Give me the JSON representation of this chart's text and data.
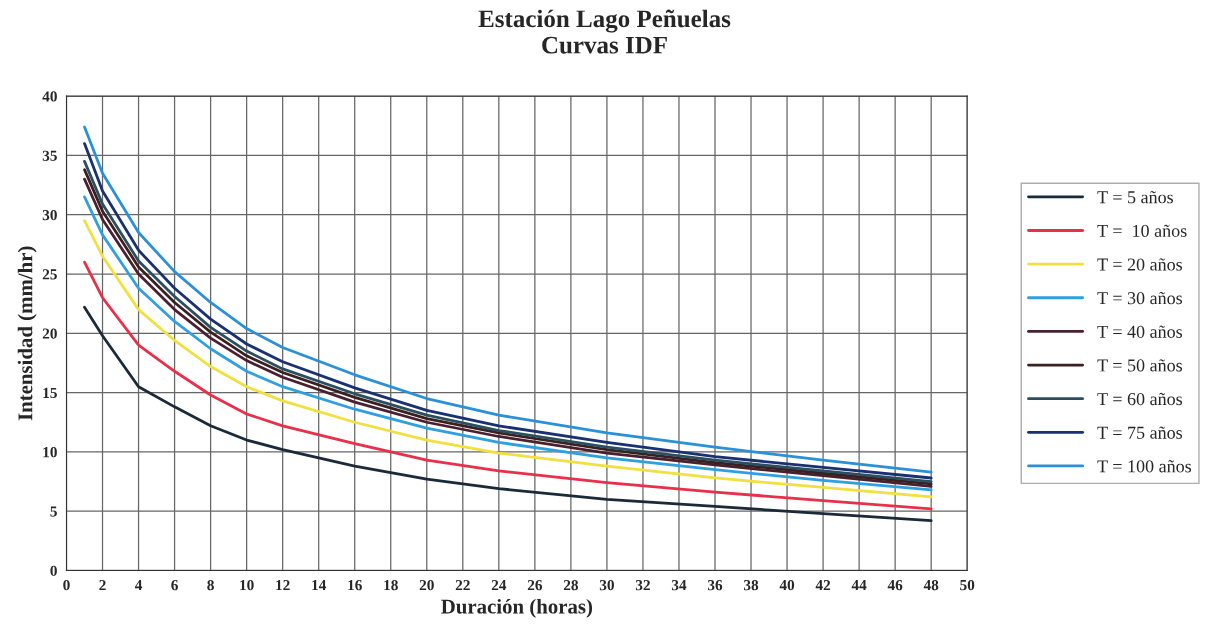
{
  "chart_data": {
    "type": "line",
    "title": "Estación Lago Peñuelas\nCurvas IDF",
    "xlabel": "Duración (horas)",
    "ylabel": "Intensidad (mm/hr)",
    "x": [
      1,
      2,
      4,
      6,
      8,
      10,
      12,
      16,
      20,
      24,
      30,
      36,
      42,
      48
    ],
    "series": [
      {
        "name": "T = 5 años",
        "color": "#1a2a3a",
        "values": [
          22.2,
          19.8,
          15.5,
          13.8,
          12.2,
          11.0,
          10.2,
          8.8,
          7.7,
          6.9,
          6.0,
          5.4,
          4.8,
          4.2
        ]
      },
      {
        "name": "T =  10 años",
        "color": "#e8304a",
        "values": [
          26.0,
          23.0,
          19.0,
          16.8,
          14.8,
          13.2,
          12.2,
          10.7,
          9.3,
          8.4,
          7.4,
          6.6,
          5.9,
          5.2
        ]
      },
      {
        "name": "T = 20 años",
        "color": "#f0e040",
        "values": [
          29.5,
          26.5,
          22.0,
          19.4,
          17.2,
          15.5,
          14.3,
          12.5,
          11.0,
          9.9,
          8.8,
          7.8,
          7.0,
          6.2
        ]
      },
      {
        "name": "T = 30 años",
        "color": "#2ea0e0",
        "values": [
          31.5,
          28.3,
          23.8,
          21.0,
          18.7,
          16.8,
          15.5,
          13.6,
          12.0,
          10.8,
          9.5,
          8.5,
          7.6,
          6.8
        ]
      },
      {
        "name": "T = 40 años",
        "color": "#4a2030",
        "values": [
          33.0,
          29.6,
          25.0,
          22.0,
          19.6,
          17.7,
          16.3,
          14.2,
          12.5,
          11.3,
          9.9,
          8.9,
          8.0,
          7.1
        ]
      },
      {
        "name": "T = 50 años",
        "color": "#3a2020",
        "values": [
          33.8,
          30.3,
          25.6,
          22.6,
          20.1,
          18.1,
          16.7,
          14.6,
          12.8,
          11.6,
          10.2,
          9.1,
          8.2,
          7.3
        ]
      },
      {
        "name": "T = 60 años",
        "color": "#2a5060",
        "values": [
          34.5,
          30.9,
          26.1,
          23.1,
          20.5,
          18.5,
          17.0,
          14.9,
          13.1,
          11.8,
          10.4,
          9.3,
          8.4,
          7.5
        ]
      },
      {
        "name": "T = 75 años",
        "color": "#1a3070",
        "values": [
          36.0,
          32.0,
          27.0,
          23.8,
          21.2,
          19.1,
          17.6,
          15.4,
          13.5,
          12.2,
          10.8,
          9.6,
          8.7,
          7.8
        ]
      },
      {
        "name": "T = 100 años",
        "color": "#2a90d8",
        "values": [
          37.4,
          33.5,
          28.5,
          25.2,
          22.6,
          20.4,
          18.8,
          16.5,
          14.5,
          13.1,
          11.6,
          10.4,
          9.3,
          8.3
        ]
      }
    ],
    "xlim": [
      0,
      50
    ],
    "xticks": [
      0,
      2,
      4,
      6,
      8,
      10,
      12,
      14,
      16,
      18,
      20,
      22,
      24,
      26,
      28,
      30,
      32,
      34,
      36,
      38,
      40,
      42,
      44,
      46,
      48,
      50
    ],
    "ylim": [
      0,
      40
    ],
    "yticks": [
      0,
      5,
      10,
      15,
      20,
      25,
      30,
      35,
      40
    ],
    "grid": true,
    "legend": "right",
    "marker": "none",
    "line_style": "solid"
  }
}
